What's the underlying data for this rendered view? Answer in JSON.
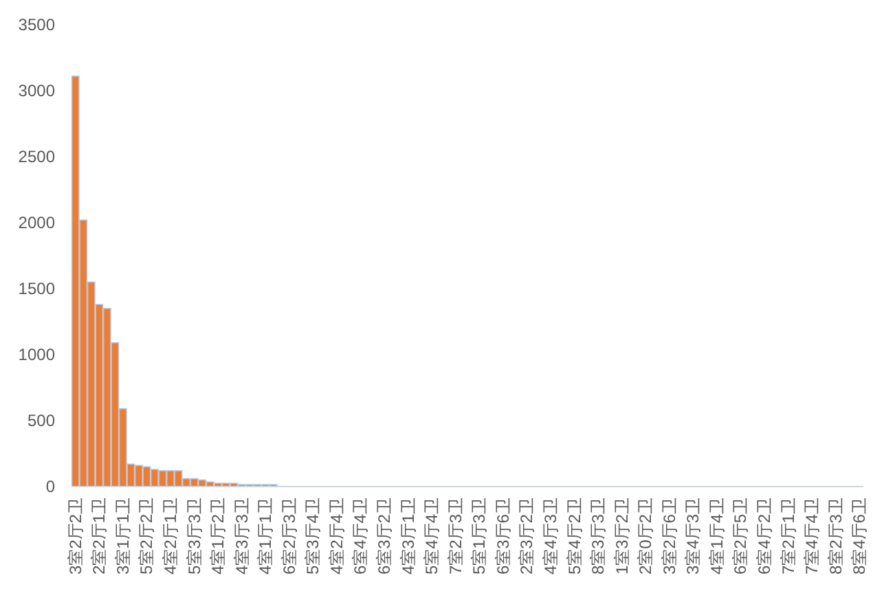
{
  "chart_data": {
    "type": "bar",
    "color": "#ed7d31",
    "categories": [
      "3室2厅2卫",
      null,
      null,
      "2室2厅1卫",
      null,
      null,
      "3室1厅1卫",
      null,
      null,
      "5室2厅2卫",
      null,
      null,
      "4室2厅1卫",
      null,
      null,
      "5室3厅3卫",
      null,
      null,
      "4室1厅2卫",
      null,
      null,
      "4室3厅3卫",
      null,
      null,
      "4室1厅1卫",
      null,
      null,
      "6室2厅3卫",
      null,
      null,
      "5室3厅4卫",
      null,
      null,
      "4室2厅4卫",
      null,
      null,
      "6室4厅4卫",
      null,
      null,
      "6室3厅2卫",
      null,
      null,
      "4室3厅1卫",
      null,
      null,
      "5室4厅4卫",
      null,
      null,
      "7室2厅3卫",
      null,
      null,
      "5室1厅3卫",
      null,
      null,
      "6室3厅6卫",
      null,
      null,
      "2室3厅2卫",
      null,
      null,
      "4室4厅3卫",
      null,
      null,
      "5室4厅2卫",
      null,
      null,
      "8室3厅3卫",
      null,
      null,
      "1室3厅2卫",
      null,
      null,
      "2室0厅2卫",
      null,
      null,
      "3室2厅6卫",
      null,
      null,
      "3室4厅3卫",
      null,
      null,
      "4室1厅4卫",
      null,
      null,
      "6室2厅5卫",
      null,
      null,
      "6室4厅2卫",
      null,
      null,
      "7室2厅1卫",
      null,
      null,
      "7室4厅4卫",
      null,
      null,
      "8室2厅3卫",
      null,
      null,
      "8室4厅6卫"
    ],
    "values": [
      3110,
      2020,
      1550,
      1380,
      1350,
      1090,
      590,
      170,
      160,
      150,
      130,
      120,
      120,
      120,
      60,
      60,
      50,
      35,
      25,
      25,
      25,
      15,
      15,
      15,
      15,
      15,
      null,
      null,
      null,
      null,
      null,
      null,
      null,
      null,
      null,
      null,
      null,
      null,
      null,
      null,
      null,
      null,
      null,
      null,
      null,
      null,
      null,
      null,
      null,
      null,
      null,
      null,
      null,
      null,
      null,
      null,
      null,
      null,
      null,
      null,
      null,
      null,
      null,
      null,
      null,
      null,
      null,
      null,
      null,
      null,
      null,
      null,
      null,
      null,
      null,
      null,
      null,
      null,
      null,
      null,
      null,
      null,
      null,
      null,
      null,
      null,
      null,
      null,
      null,
      null,
      null,
      null,
      null,
      null,
      null,
      null,
      null,
      null,
      null,
      null
    ],
    "ylim": [
      0,
      3500
    ],
    "yticks": [
      0,
      500,
      1000,
      1500,
      2000,
      2500,
      3000,
      3500
    ],
    "grid": false
  }
}
